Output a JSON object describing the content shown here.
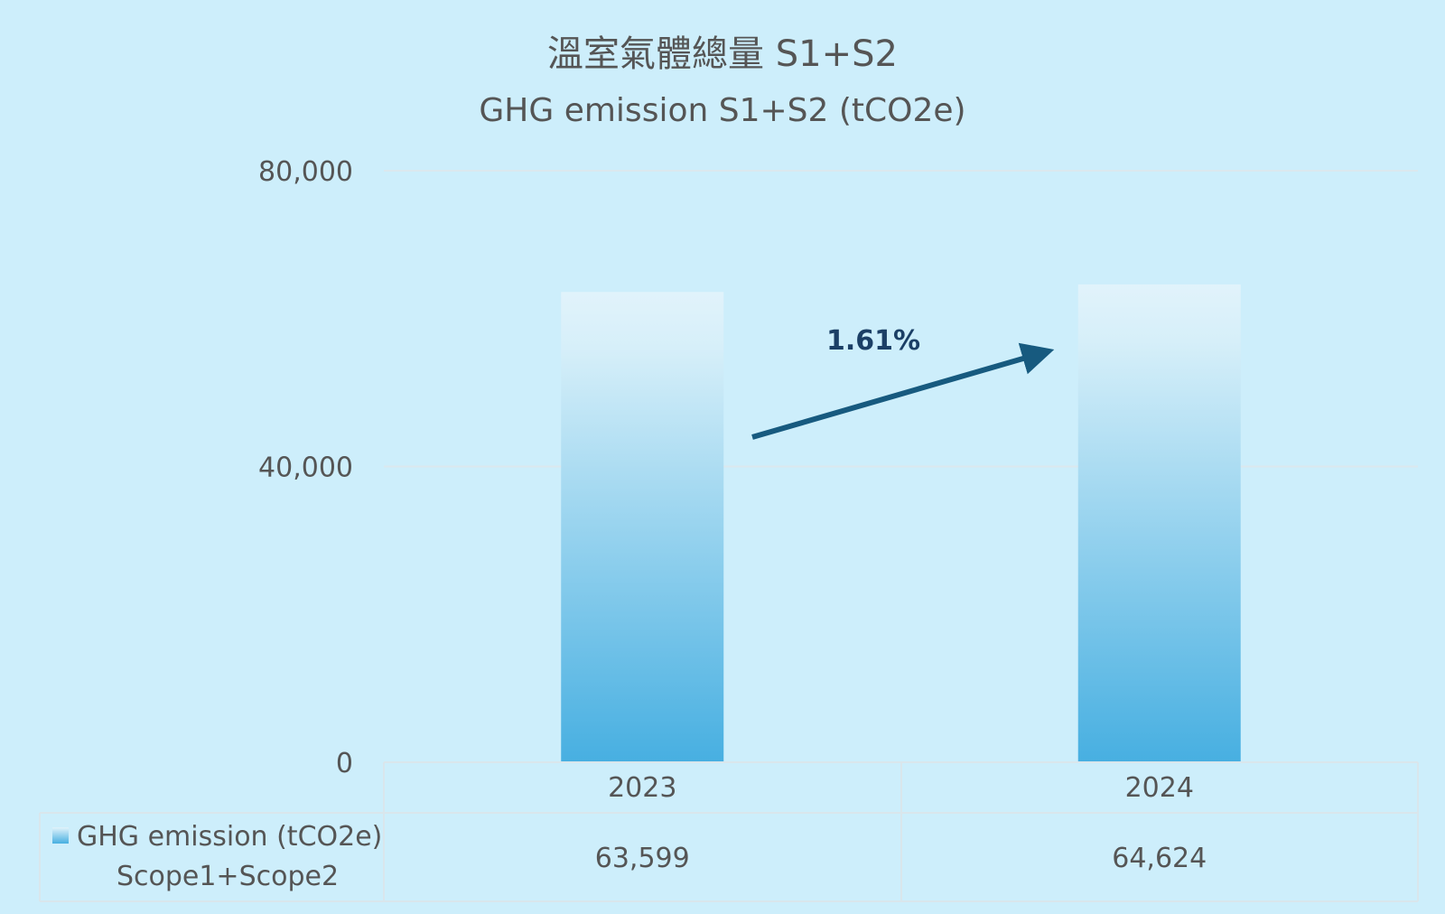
{
  "chart_data": {
    "type": "bar",
    "title": "溫室氣體總量 S1+S2",
    "subtitle": "GHG emission S1+S2 (tCO2e)",
    "categories": [
      "2023",
      "2024"
    ],
    "series": [
      {
        "name": "GHG emission (tCO2e)",
        "name_line2": "Scope1+Scope2",
        "values": [
          63599,
          64624
        ]
      }
    ],
    "table_values": [
      "63,599",
      "64,624"
    ],
    "ylim": [
      0,
      80000
    ],
    "yticks": [
      0,
      40000,
      80000
    ],
    "ytick_labels": [
      "0",
      "40,000",
      "80,000"
    ],
    "grid": true,
    "legend": "data-table",
    "annotation": {
      "text": "1.61%",
      "type": "arrow-up-right"
    },
    "colors": {
      "bar_top": "#e1f3fb",
      "bar_bottom": "#47afe1",
      "arrow": "#175a7f",
      "background": "#cdeefb",
      "grid": "#dbe8ee"
    }
  }
}
